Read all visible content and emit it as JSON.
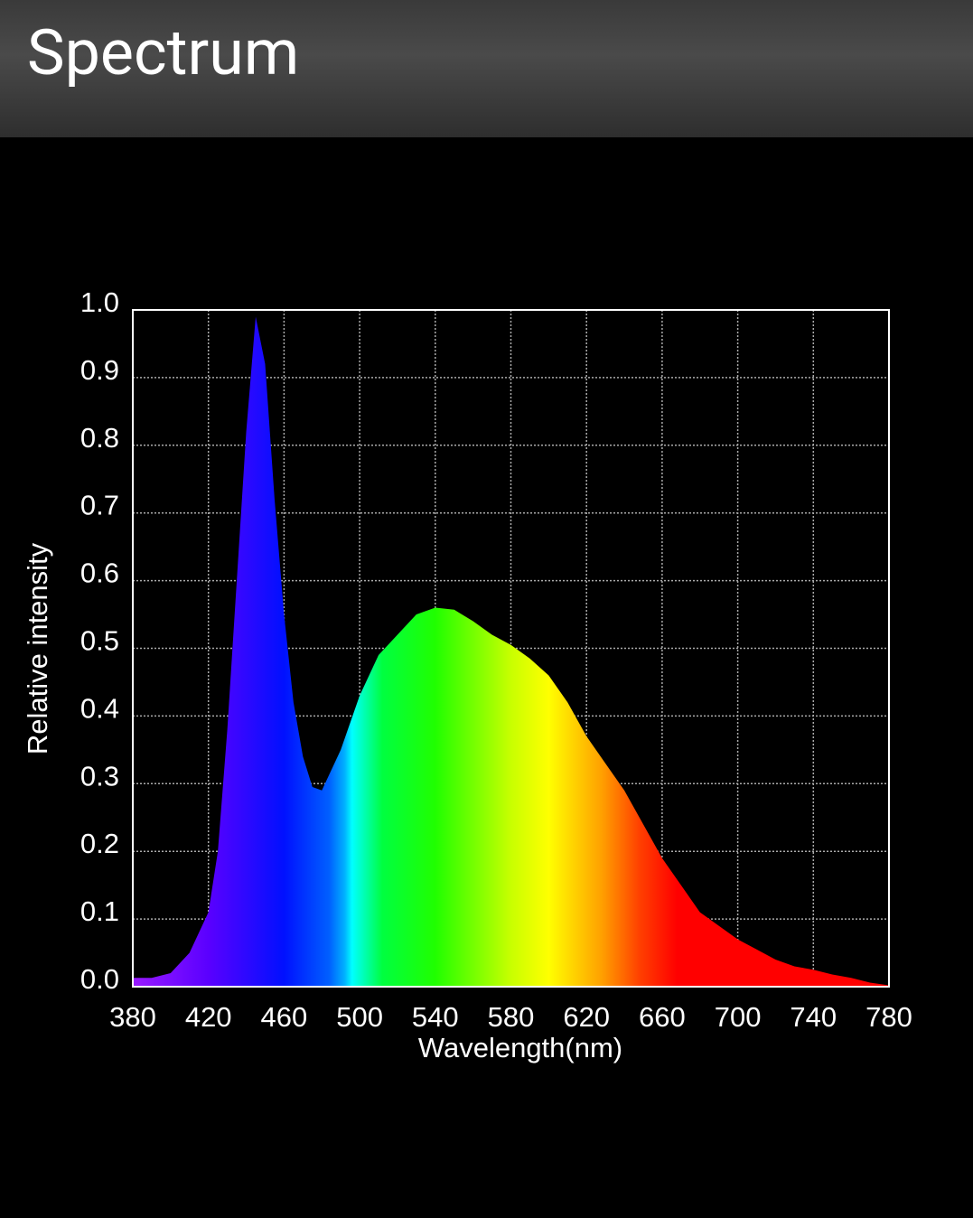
{
  "header": {
    "title": "Spectrum"
  },
  "chart_data": {
    "type": "area",
    "x_label": "Wavelength(nm)",
    "y_label": "Relative intensity",
    "x": [
      380,
      390,
      400,
      410,
      420,
      425,
      430,
      435,
      440,
      445,
      450,
      455,
      460,
      465,
      470,
      475,
      480,
      490,
      500,
      510,
      520,
      530,
      540,
      550,
      560,
      570,
      580,
      590,
      600,
      610,
      620,
      630,
      640,
      650,
      660,
      670,
      680,
      690,
      700,
      710,
      720,
      730,
      740,
      750,
      760,
      770,
      780
    ],
    "values": [
      0.013,
      0.013,
      0.02,
      0.05,
      0.11,
      0.2,
      0.38,
      0.6,
      0.82,
      0.99,
      0.92,
      0.72,
      0.55,
      0.42,
      0.34,
      0.295,
      0.29,
      0.35,
      0.43,
      0.49,
      0.52,
      0.55,
      0.56,
      0.557,
      0.54,
      0.52,
      0.505,
      0.485,
      0.46,
      0.42,
      0.37,
      0.33,
      0.29,
      0.24,
      0.19,
      0.15,
      0.11,
      0.09,
      0.07,
      0.055,
      0.04,
      0.03,
      0.025,
      0.018,
      0.013,
      0.006,
      0.002
    ],
    "xlim": [
      380,
      780
    ],
    "xticks": [
      380,
      420,
      460,
      500,
      540,
      580,
      620,
      660,
      700,
      740,
      780
    ],
    "ylim": [
      0,
      1
    ],
    "yticks": [
      {
        "value": 0,
        "label": "0.0"
      },
      0.1,
      0.2,
      0.3,
      0.4,
      0.5,
      0.6,
      0.7,
      0.8,
      0.9,
      {
        "value": 1,
        "label": "1.0"
      }
    ],
    "grid": true
  }
}
